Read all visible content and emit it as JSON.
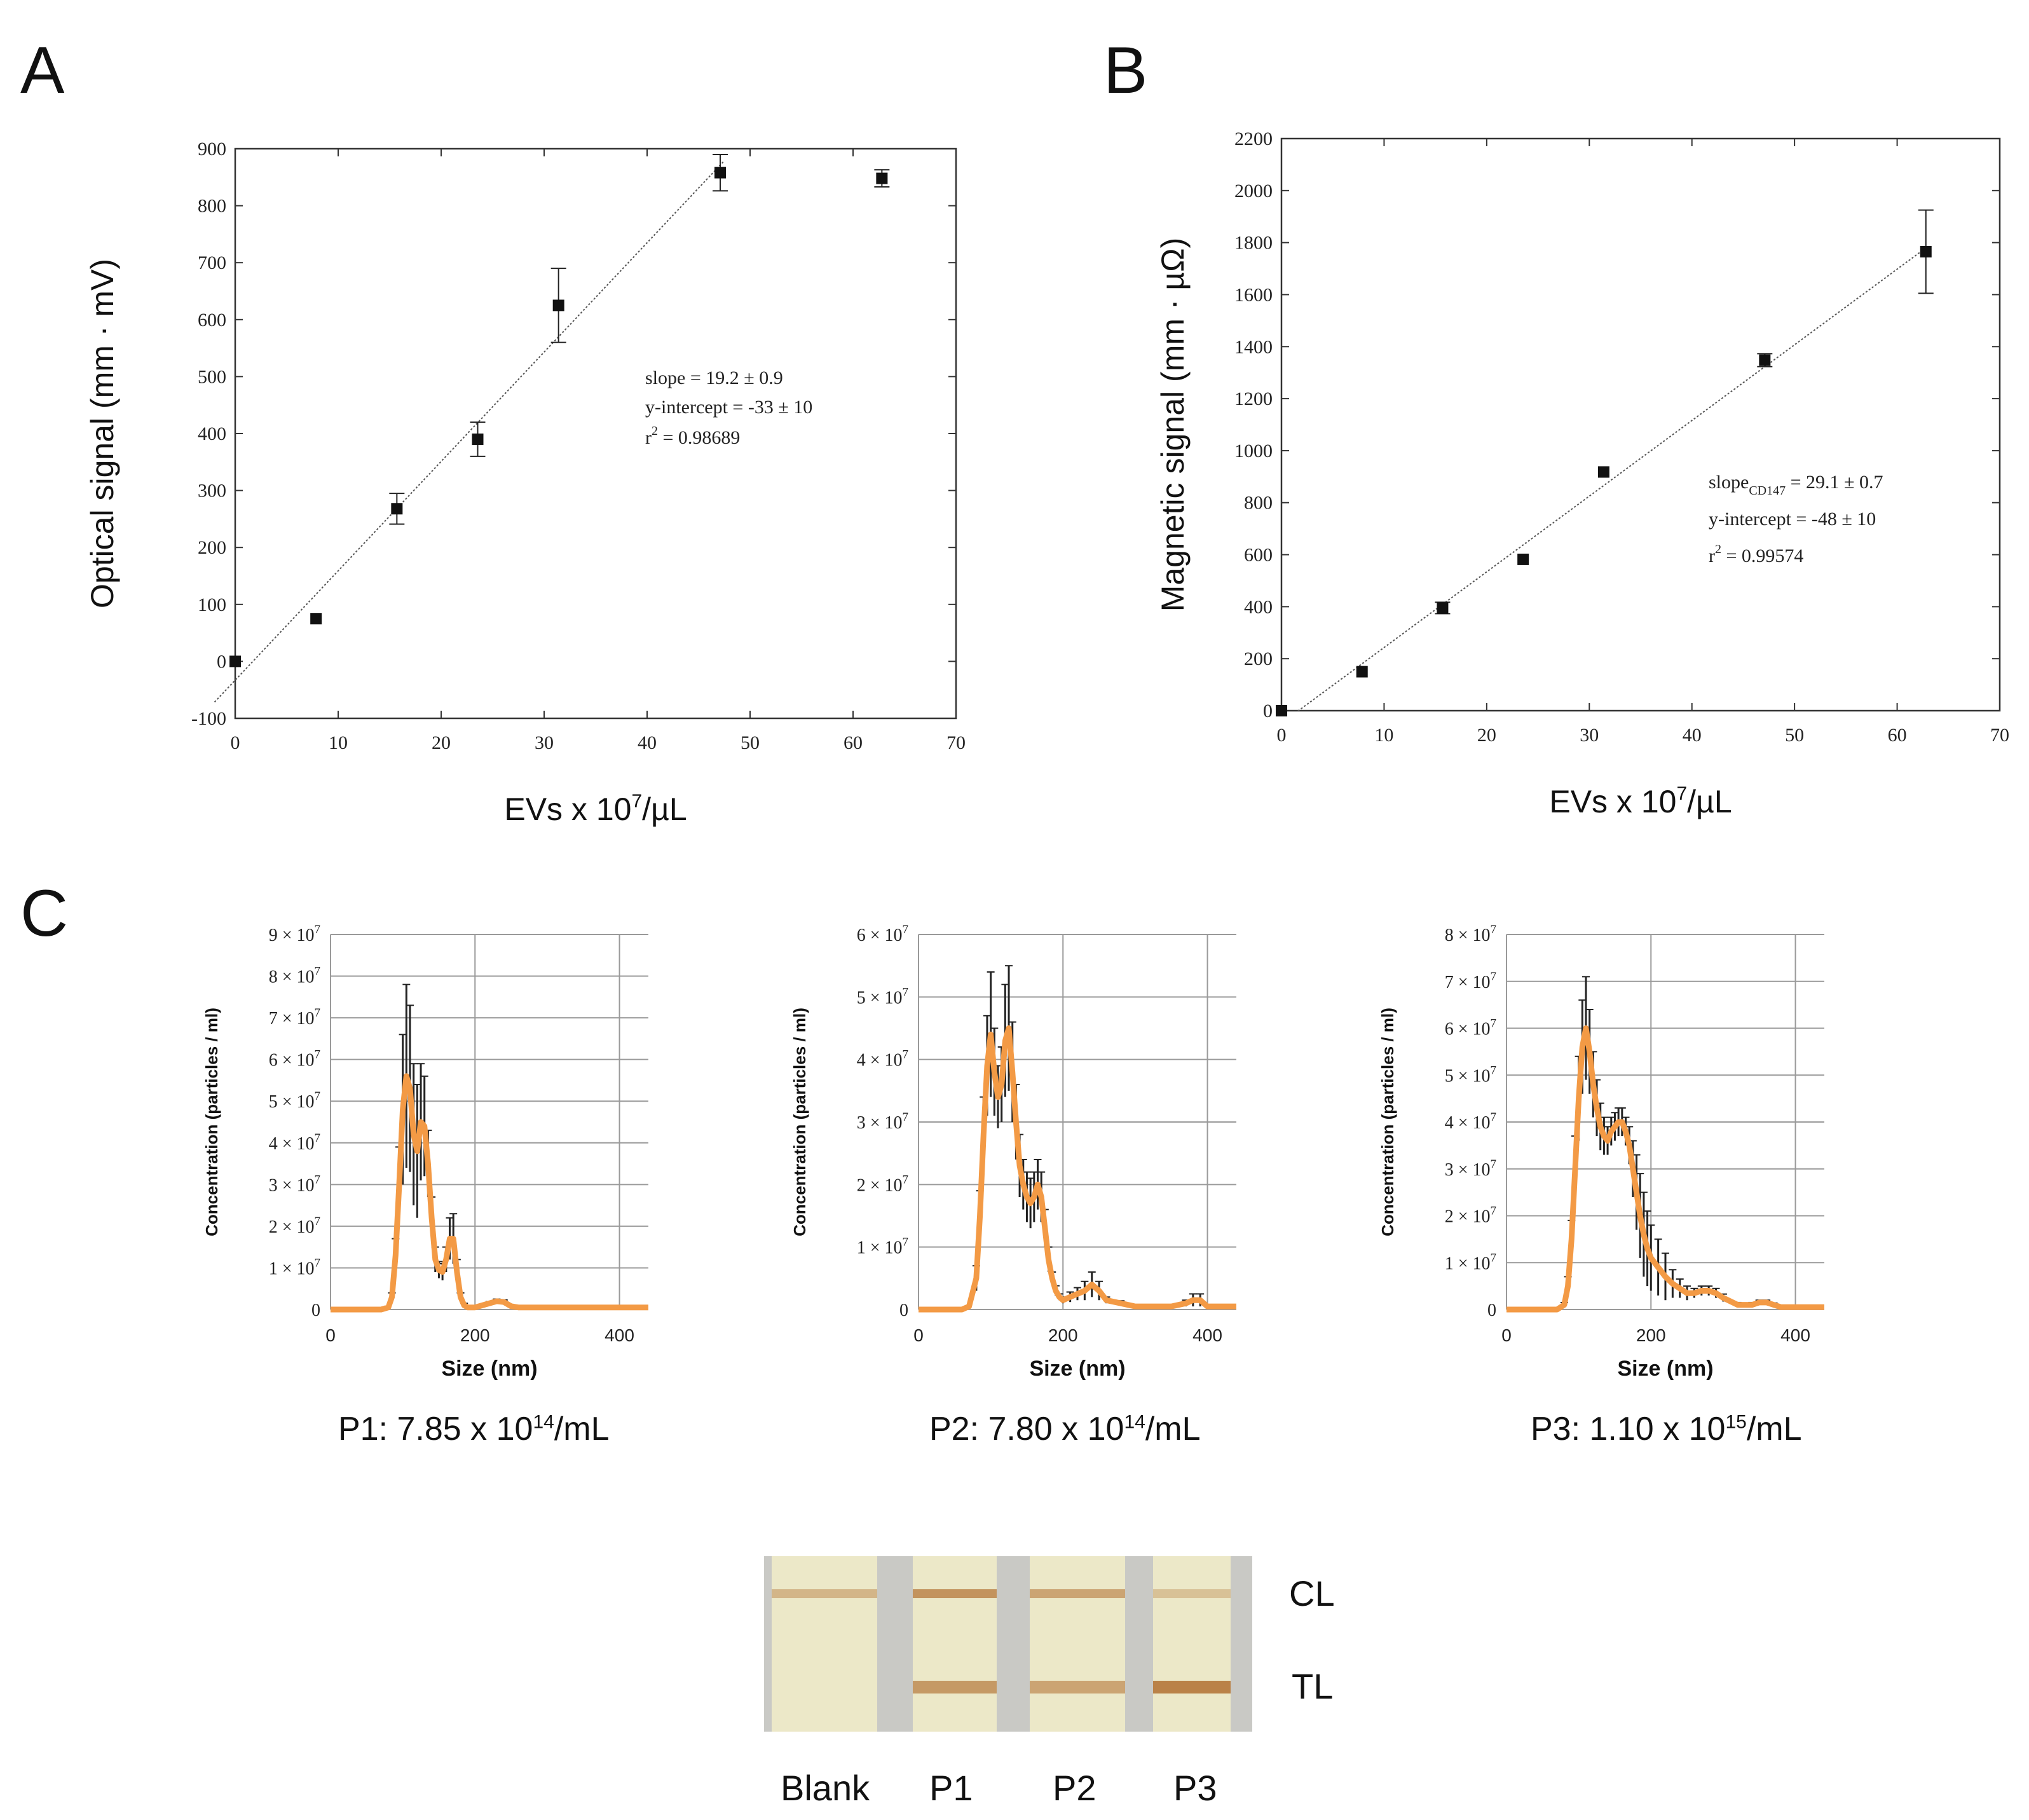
{
  "panels": {
    "a": "A",
    "b": "B",
    "c": "C"
  },
  "chart_data": [
    {
      "type": "scatter",
      "id": "A",
      "xlabel": "EVs x 10",
      "xlabel_sup": "7",
      "xlabel_suffix": "/µL",
      "ylabel": "Optical signal (mm · mV)",
      "xlim": [
        0,
        70
      ],
      "ylim": [
        -100,
        900
      ],
      "xticks": [
        0,
        10,
        20,
        30,
        40,
        50,
        60,
        70
      ],
      "yticks": [
        -100,
        0,
        100,
        200,
        300,
        400,
        500,
        600,
        700,
        800,
        900
      ],
      "points": [
        {
          "x": 0,
          "y": 0,
          "err": 0
        },
        {
          "x": 7.85,
          "y": 75,
          "err": 0
        },
        {
          "x": 15.7,
          "y": 268,
          "err": 27
        },
        {
          "x": 23.55,
          "y": 390,
          "err": 30
        },
        {
          "x": 31.4,
          "y": 625,
          "err": 65
        },
        {
          "x": 47.1,
          "y": 858,
          "err": 32
        },
        {
          "x": 62.8,
          "y": 848,
          "err": 15
        }
      ],
      "fit": {
        "slope": 19.2,
        "intercept": -33,
        "x_range": [
          -2,
          47.5
        ]
      },
      "annotations": [
        "slope = 19.2 ± 0.9",
        "y-intercept = -33 ± 10",
        "r",
        "2",
        " = 0.98689"
      ]
    },
    {
      "type": "scatter",
      "id": "B",
      "xlabel": "EVs x 10",
      "xlabel_sup": "7",
      "xlabel_suffix": "/µL",
      "ylabel": "Magnetic signal (mm · µΩ)",
      "xlim": [
        0,
        70
      ],
      "ylim": [
        0,
        2200
      ],
      "xticks": [
        0,
        10,
        20,
        30,
        40,
        50,
        60,
        70
      ],
      "yticks": [
        0,
        200,
        400,
        600,
        800,
        1000,
        1200,
        1400,
        1600,
        1800,
        2000,
        2200
      ],
      "points": [
        {
          "x": 0,
          "y": 0,
          "err": 0
        },
        {
          "x": 7.85,
          "y": 150,
          "err": 0
        },
        {
          "x": 15.7,
          "y": 395,
          "err": 22
        },
        {
          "x": 23.55,
          "y": 582,
          "err": 0
        },
        {
          "x": 31.4,
          "y": 918,
          "err": 0
        },
        {
          "x": 47.1,
          "y": 1348,
          "err": 25
        },
        {
          "x": 62.8,
          "y": 1765,
          "err": 160
        }
      ],
      "fit": {
        "slope": 29.1,
        "intercept": -48,
        "x_range": [
          1.6,
          62.8
        ]
      },
      "annotations": [
        "slope",
        "CD147",
        " = 29.1 ± 0.7",
        "y-intercept = -48 ± 10",
        "r",
        "2",
        " = 0.99574"
      ]
    },
    {
      "type": "line",
      "id": "C-P1",
      "xlabel": "Size (nm)",
      "ylabel": "Concentration (particles / ml)",
      "xlim": [
        0,
        440
      ],
      "ylim": [
        0,
        9
      ],
      "xticks": [
        0,
        200,
        400
      ],
      "ytick_labels": [
        "0",
        "1 × 10",
        "2 × 10",
        "3 × 10",
        "4 × 10",
        "5 × 10",
        "6 × 10",
        "7 × 10",
        "8 × 10",
        "9 × 10"
      ],
      "ytick_exp": "7",
      "y_unit_scale": "x 10^7",
      "x": [
        0,
        70,
        80,
        85,
        90,
        95,
        100,
        105,
        110,
        115,
        120,
        125,
        130,
        135,
        140,
        145,
        150,
        155,
        160,
        165,
        170,
        175,
        180,
        185,
        190,
        195,
        200,
        210,
        220,
        230,
        240,
        250,
        260,
        280,
        300,
        350,
        400,
        440
      ],
      "values": [
        0,
        0,
        0.05,
        0.3,
        1.3,
        3.0,
        4.8,
        5.6,
        5.3,
        4.2,
        3.8,
        4.5,
        4.4,
        3.5,
        2.2,
        1.2,
        0.95,
        0.9,
        1.2,
        1.7,
        1.7,
        0.9,
        0.3,
        0.1,
        0.05,
        0.05,
        0.05,
        0.1,
        0.15,
        0.2,
        0.18,
        0.08,
        0.05,
        0.05,
        0.05,
        0.05,
        0.05,
        0.05
      ],
      "err": [
        0,
        0,
        0,
        0.1,
        0.4,
        0.9,
        1.8,
        2.2,
        2.0,
        1.7,
        1.6,
        1.4,
        1.2,
        0.8,
        0.5,
        0.3,
        0.2,
        0.2,
        0.3,
        0.5,
        0.6,
        0.3,
        0.1,
        0.05,
        0.02,
        0.02,
        0.02,
        0.03,
        0.04,
        0.05,
        0.05,
        0.03,
        0.02,
        0.02,
        0.02,
        0.02,
        0.02,
        0.02
      ],
      "caption": "P1: 7.85 x 10",
      "caption_sup": "14",
      "caption_suffix": "/mL"
    },
    {
      "type": "line",
      "id": "C-P2",
      "xlabel": "Size (nm)",
      "ylabel": "Concentration (particles / ml)",
      "xlim": [
        0,
        440
      ],
      "ylim": [
        0,
        6
      ],
      "xticks": [
        0,
        200,
        400
      ],
      "ytick_labels": [
        "0",
        "1 × 10",
        "2 × 10",
        "3 × 10",
        "4 × 10",
        "5 × 10",
        "6 × 10"
      ],
      "ytick_exp": "7",
      "y_unit_scale": "x 10^7",
      "x": [
        0,
        60,
        70,
        80,
        85,
        90,
        95,
        100,
        105,
        110,
        115,
        120,
        125,
        130,
        135,
        140,
        145,
        150,
        155,
        160,
        165,
        170,
        175,
        180,
        185,
        190,
        195,
        200,
        210,
        220,
        230,
        240,
        250,
        260,
        280,
        300,
        350,
        370,
        380,
        390,
        400,
        440
      ],
      "values": [
        0,
        0,
        0.05,
        0.5,
        1.5,
        2.8,
        3.9,
        4.4,
        3.8,
        3.4,
        3.6,
        4.3,
        4.5,
        3.8,
        3.0,
        2.3,
        2.0,
        1.8,
        1.7,
        1.8,
        2.0,
        1.8,
        1.3,
        0.8,
        0.5,
        0.3,
        0.2,
        0.15,
        0.2,
        0.25,
        0.3,
        0.4,
        0.3,
        0.15,
        0.1,
        0.05,
        0.05,
        0.1,
        0.15,
        0.15,
        0.05,
        0.05
      ],
      "err": [
        0,
        0,
        0.02,
        0.2,
        0.4,
        0.6,
        0.8,
        1.0,
        0.7,
        0.5,
        0.6,
        0.9,
        1.0,
        0.8,
        0.6,
        0.5,
        0.4,
        0.4,
        0.4,
        0.4,
        0.4,
        0.4,
        0.3,
        0.2,
        0.1,
        0.08,
        0.05,
        0.05,
        0.08,
        0.1,
        0.15,
        0.2,
        0.15,
        0.05,
        0.04,
        0.02,
        0.02,
        0.05,
        0.1,
        0.1,
        0.03,
        0.02
      ],
      "caption": "P2: 7.80 x 10",
      "caption_sup": "14",
      "caption_suffix": "/mL"
    },
    {
      "type": "line",
      "id": "C-P3",
      "xlabel": "Size (nm)",
      "ylabel": "Concentration (particles / ml)",
      "xlim": [
        0,
        440
      ],
      "ylim": [
        0,
        8
      ],
      "xticks": [
        0,
        200,
        400
      ],
      "ytick_labels": [
        "0",
        "1 × 10",
        "2 × 10",
        "3 × 10",
        "4 × 10",
        "5 × 10",
        "6 × 10",
        "7 × 10",
        "8 × 10"
      ],
      "ytick_exp": "7",
      "y_unit_scale": "x 10^7",
      "x": [
        0,
        70,
        80,
        85,
        90,
        95,
        100,
        105,
        110,
        115,
        120,
        125,
        130,
        135,
        140,
        145,
        150,
        155,
        160,
        165,
        170,
        175,
        180,
        185,
        190,
        195,
        200,
        210,
        220,
        230,
        240,
        250,
        260,
        270,
        280,
        290,
        300,
        320,
        340,
        350,
        360,
        370,
        380,
        400,
        440
      ],
      "values": [
        0,
        0,
        0.1,
        0.5,
        1.5,
        3.0,
        4.5,
        5.6,
        6.0,
        5.5,
        4.8,
        4.3,
        3.9,
        3.7,
        3.6,
        3.8,
        3.9,
        4.0,
        4.0,
        3.8,
        3.5,
        3.0,
        2.5,
        2.0,
        1.6,
        1.3,
        1.1,
        0.9,
        0.7,
        0.55,
        0.45,
        0.35,
        0.35,
        0.4,
        0.4,
        0.35,
        0.25,
        0.1,
        0.1,
        0.15,
        0.15,
        0.1,
        0.05,
        0.05,
        0.05
      ],
      "err": [
        0,
        0,
        0.05,
        0.2,
        0.4,
        0.7,
        0.9,
        1.0,
        1.1,
        0.9,
        0.7,
        0.6,
        0.5,
        0.4,
        0.3,
        0.3,
        0.3,
        0.3,
        0.3,
        0.3,
        0.4,
        0.6,
        0.8,
        0.9,
        0.9,
        0.8,
        0.7,
        0.6,
        0.5,
        0.3,
        0.2,
        0.15,
        0.1,
        0.1,
        0.1,
        0.1,
        0.08,
        0.05,
        0.05,
        0.05,
        0.05,
        0.04,
        0.02,
        0.02,
        0.02
      ],
      "caption": "P3: 1.10 x 10",
      "caption_sup": "15",
      "caption_suffix": "/mL"
    }
  ],
  "strips": {
    "labels": [
      "Blank",
      "P1",
      "P2",
      "P3"
    ],
    "line_labels": {
      "control": "CL",
      "test": "TL"
    },
    "test_line_intensity": [
      0,
      0.7,
      0.6,
      0.9
    ],
    "control_line_intensity": [
      0.45,
      0.75,
      0.6,
      0.35
    ],
    "colors": {
      "pad": "#ece8c8",
      "gap": "#b7b7b4",
      "line": "#b5773a",
      "frame": "#c9c9c5"
    }
  },
  "colors": {
    "marker": "#111111",
    "fit": "#555555",
    "size_line": "#f39a45",
    "size_err": "#222222",
    "grid": "#9a9a9a"
  }
}
